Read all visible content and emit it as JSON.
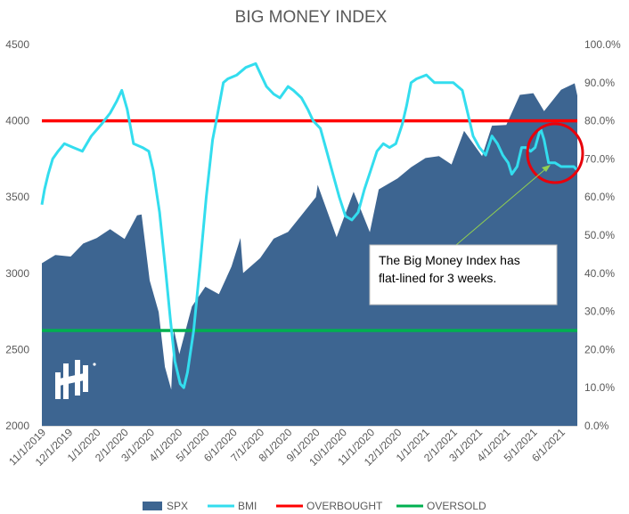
{
  "chart_data": {
    "type": "area",
    "title": "BIG MONEY INDEX",
    "x": [
      "11/1/2019",
      "12/1/2019",
      "1/1/2020",
      "2/1/2020",
      "3/1/2020",
      "4/1/2020",
      "5/1/2020",
      "6/1/2020",
      "7/1/2020",
      "8/1/2020",
      "9/1/2020",
      "10/1/2020",
      "11/1/2020",
      "12/1/2020",
      "1/1/2021",
      "2/1/2021",
      "3/1/2021",
      "4/1/2021",
      "5/1/2021",
      "6/1/2021"
    ],
    "y_left": {
      "ticks": [
        "2000",
        "2500",
        "3000",
        "3500",
        "4000",
        "4500"
      ],
      "min": 2000,
      "max": 4500
    },
    "y_right": {
      "ticks": [
        "0.0%",
        "10.0%",
        "20.0%",
        "30.0%",
        "40.0%",
        "50.0%",
        "60.0%",
        "70.0%",
        "80.0%",
        "90.0%",
        "100.0%"
      ],
      "min": 0,
      "max": 100
    },
    "grid": false,
    "legend_position": "bottom",
    "series": [
      {
        "name": "SPX",
        "type": "area",
        "axis": "left",
        "color": "#3d6591",
        "points": [
          [
            "10/31/2019",
            3066
          ],
          [
            "11/15/2019",
            3120
          ],
          [
            "12/2/2019",
            3110
          ],
          [
            "12/16/2019",
            3195
          ],
          [
            "12/31/2019",
            3231
          ],
          [
            "1/15/2020",
            3289
          ],
          [
            "1/31/2020",
            3225
          ],
          [
            "2/14/2020",
            3380
          ],
          [
            "2/19/2020",
            3386
          ],
          [
            "2/28/2020",
            2954
          ],
          [
            "3/9/2020",
            2746
          ],
          [
            "3/16/2020",
            2386
          ],
          [
            "3/23/2020",
            2237
          ],
          [
            "3/26/2020",
            2630
          ],
          [
            "4/1/2020",
            2470
          ],
          [
            "4/15/2020",
            2783
          ],
          [
            "4/30/2020",
            2912
          ],
          [
            "5/15/2020",
            2863
          ],
          [
            "5/29/2020",
            3044
          ],
          [
            "6/8/2020",
            3232
          ],
          [
            "6/11/2020",
            3002
          ],
          [
            "6/30/2020",
            3100
          ],
          [
            "7/15/2020",
            3227
          ],
          [
            "7/31/2020",
            3271
          ],
          [
            "8/14/2020",
            3373
          ],
          [
            "8/31/2020",
            3500
          ],
          [
            "9/2/2020",
            3580
          ],
          [
            "9/23/2020",
            3237
          ],
          [
            "10/12/2020",
            3535
          ],
          [
            "10/30/2020",
            3270
          ],
          [
            "11/9/2020",
            3550
          ],
          [
            "11/30/2020",
            3622
          ],
          [
            "12/15/2020",
            3695
          ],
          [
            "12/31/2020",
            3756
          ],
          [
            "1/15/2021",
            3768
          ],
          [
            "1/29/2021",
            3714
          ],
          [
            "2/12/2021",
            3934
          ],
          [
            "3/4/2021",
            3768
          ],
          [
            "3/15/2021",
            3968
          ],
          [
            "3/31/2021",
            3973
          ],
          [
            "4/15/2021",
            4170
          ],
          [
            "4/30/2021",
            4181
          ],
          [
            "5/12/2021",
            4063
          ],
          [
            "5/31/2021",
            4204
          ],
          [
            "6/15/2021",
            4246
          ],
          [
            "6/18/2021",
            4166
          ]
        ]
      },
      {
        "name": "BMI",
        "type": "line",
        "axis": "right",
        "color": "#33ddee",
        "points": [
          [
            "10/31/2019",
            58
          ],
          [
            "11/3/2019",
            62
          ],
          [
            "11/7/2019",
            66
          ],
          [
            "11/12/2019",
            70
          ],
          [
            "11/18/2019",
            72
          ],
          [
            "11/25/2019",
            74
          ],
          [
            "12/5/2019",
            73
          ],
          [
            "12/15/2019",
            72
          ],
          [
            "12/25/2019",
            76
          ],
          [
            "1/5/2020",
            79
          ],
          [
            "1/15/2020",
            82
          ],
          [
            "1/22/2020",
            85
          ],
          [
            "1/28/2020",
            88
          ],
          [
            "2/3/2020",
            83
          ],
          [
            "2/10/2020",
            74
          ],
          [
            "2/20/2020",
            73
          ],
          [
            "2/27/2020",
            72
          ],
          [
            "3/3/2020",
            67
          ],
          [
            "3/10/2020",
            56
          ],
          [
            "3/17/2020",
            40
          ],
          [
            "3/22/2020",
            28
          ],
          [
            "3/27/2020",
            17
          ],
          [
            "4/2/2020",
            11
          ],
          [
            "4/6/2020",
            10
          ],
          [
            "4/10/2020",
            14
          ],
          [
            "4/17/2020",
            25
          ],
          [
            "4/24/2020",
            42
          ],
          [
            "5/1/2020",
            60
          ],
          [
            "5/8/2020",
            75
          ],
          [
            "5/13/2020",
            81
          ],
          [
            "5/20/2020",
            90
          ],
          [
            "5/25/2020",
            91
          ],
          [
            "6/4/2020",
            92
          ],
          [
            "6/14/2020",
            94
          ],
          [
            "6/25/2020",
            95
          ],
          [
            "7/1/2020",
            92
          ],
          [
            "7/7/2020",
            89
          ],
          [
            "7/15/2020",
            87
          ],
          [
            "7/22/2020",
            86
          ],
          [
            "7/31/2020",
            89
          ],
          [
            "8/6/2020",
            88
          ],
          [
            "8/15/2020",
            86
          ],
          [
            "8/22/2020",
            83
          ],
          [
            "8/28/2020",
            80
          ],
          [
            "9/5/2020",
            78
          ],
          [
            "9/12/2020",
            72
          ],
          [
            "9/19/2020",
            66
          ],
          [
            "9/26/2020",
            60
          ],
          [
            "10/3/2020",
            55
          ],
          [
            "10/10/2020",
            54
          ],
          [
            "10/17/2020",
            56
          ],
          [
            "10/24/2020",
            62
          ],
          [
            "10/31/2020",
            67
          ],
          [
            "11/7/2020",
            72
          ],
          [
            "11/14/2020",
            74
          ],
          [
            "11/21/2020",
            73
          ],
          [
            "11/28/2020",
            74
          ],
          [
            "12/5/2020",
            79
          ],
          [
            "12/10/2020",
            84
          ],
          [
            "12/15/2020",
            90
          ],
          [
            "12/21/2020",
            91
          ],
          [
            "1/1/2021",
            92
          ],
          [
            "1/10/2021",
            90
          ],
          [
            "1/20/2021",
            90
          ],
          [
            "1/31/2021",
            90
          ],
          [
            "2/10/2021",
            88
          ],
          [
            "2/16/2021",
            82
          ],
          [
            "2/22/2021",
            76
          ],
          [
            "3/1/2021",
            73
          ],
          [
            "3/8/2021",
            71
          ],
          [
            "3/15/2021",
            76
          ],
          [
            "3/21/2021",
            74
          ],
          [
            "3/27/2021",
            71
          ],
          [
            "4/2/2021",
            69
          ],
          [
            "4/6/2021",
            66
          ],
          [
            "4/12/2021",
            68
          ],
          [
            "4/17/2021",
            73
          ],
          [
            "4/22/2021",
            73
          ],
          [
            "4/27/2021",
            72
          ],
          [
            "5/2/2021",
            73
          ],
          [
            "5/8/2021",
            78
          ],
          [
            "5/12/2021",
            75
          ],
          [
            "5/17/2021",
            69
          ],
          [
            "5/24/2021",
            69
          ],
          [
            "5/31/2021",
            68
          ],
          [
            "6/7/2021",
            68
          ],
          [
            "6/14/2021",
            68
          ],
          [
            "6/18/2021",
            67
          ]
        ]
      },
      {
        "name": "OVERBOUGHT",
        "type": "hline",
        "axis": "right",
        "color": "#ff0000",
        "value": 80
      },
      {
        "name": "OVERSOLD",
        "type": "hline",
        "axis": "right",
        "color": "#00b050",
        "value": 25
      }
    ],
    "annotation": {
      "text_lines": [
        "The Big Money Index has",
        "flat-lined for 3 weeks."
      ],
      "arrow_color": "#92d050",
      "circle_color": "#e8000b"
    }
  }
}
